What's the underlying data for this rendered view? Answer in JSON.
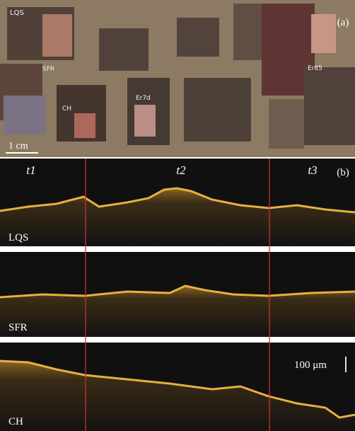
{
  "panel_a": {
    "label": "(a)",
    "scale_bar": "1 cm",
    "samples": [
      "LQS",
      "SFR",
      "CH",
      "Er7d",
      "Er85"
    ]
  },
  "panel_b": {
    "label": "(b)",
    "times": [
      "t1",
      "t2",
      "t3"
    ],
    "scans": [
      "LQS",
      "SFR",
      "CH"
    ],
    "scale_bar": "100 μm"
  }
}
